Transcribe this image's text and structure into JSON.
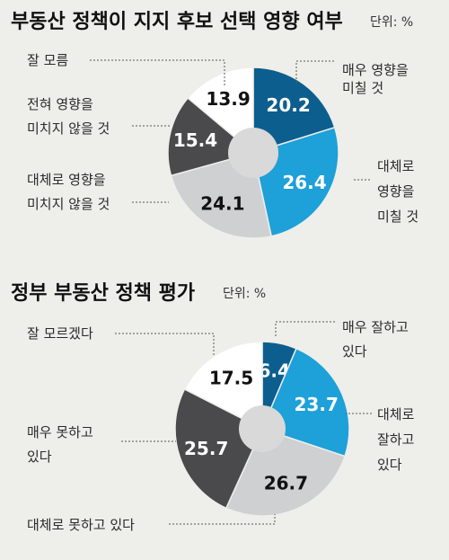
{
  "unit_label": "단위: %",
  "colors": {
    "navy": "#0c5e8e",
    "sky": "#1ea0d9",
    "light_gray": "#cfd0d2",
    "dark_gray": "#4a4a4d",
    "white": "#ffffff",
    "hole": "#d9d9d9"
  },
  "chart_data": [
    {
      "type": "pie",
      "title": "부동산 정책이 지지 후보 선택 영향 여부",
      "unit": "단위: %",
      "slices": [
        {
          "label": "매우 영향을 미칠 것",
          "label_lines": [
            "매우 영향을",
            "미칠 것"
          ],
          "value": 20.2,
          "color": "#0c5e8e"
        },
        {
          "label": "대체로 영향을 미칠 것",
          "label_lines": [
            "대체로",
            "영향을",
            "미칠 것"
          ],
          "value": 26.4,
          "color": "#1ea0d9"
        },
        {
          "label": "대체로 영향을 미치지 않을 것",
          "label_lines": [
            "대체로 영향을",
            "미치지 않을 것"
          ],
          "value": 24.1,
          "color": "#cfd0d2"
        },
        {
          "label": "전혀 영향을 미치지 않을 것",
          "label_lines": [
            "전혀 영향을",
            "미치지 않을 것"
          ],
          "value": 15.4,
          "color": "#4a4a4d"
        },
        {
          "label": "잘 모름",
          "label_lines": [
            "잘 모름"
          ],
          "value": 13.9,
          "color": "#ffffff"
        }
      ]
    },
    {
      "type": "pie",
      "title": "정부 부동산 정책 평가",
      "unit": "단위: %",
      "slices": [
        {
          "label": "매우 잘하고 있다",
          "label_lines": [
            "매우 잘하고",
            "있다"
          ],
          "value": 6.4,
          "color": "#0c5e8e"
        },
        {
          "label": "대체로 잘하고 있다",
          "label_lines": [
            "대체로",
            "잘하고",
            "있다"
          ],
          "value": 23.7,
          "color": "#1ea0d9"
        },
        {
          "label": "대체로 못하고 있다",
          "label_lines": [
            "대체로 못하고 있다"
          ],
          "value": 26.7,
          "color": "#cfd0d2"
        },
        {
          "label": "매우 못하고 있다",
          "label_lines": [
            "매우 못하고",
            "있다"
          ],
          "value": 25.7,
          "color": "#4a4a4d"
        },
        {
          "label": "잘 모르겠다",
          "label_lines": [
            "잘 모르겠다"
          ],
          "value": 17.5,
          "color": "#ffffff"
        }
      ]
    }
  ]
}
